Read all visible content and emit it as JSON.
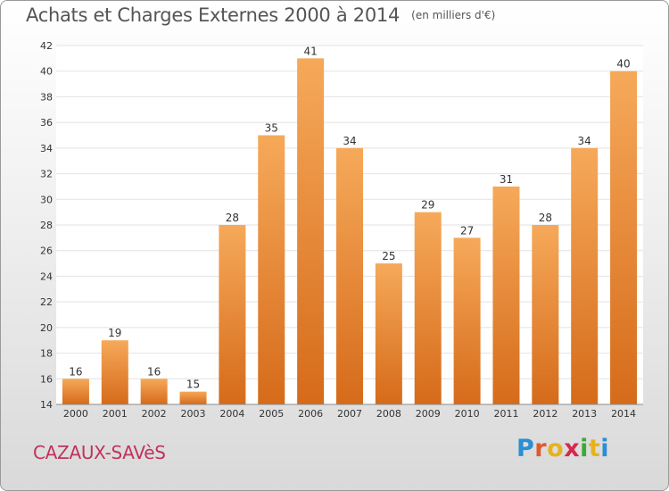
{
  "header": {
    "title": "Achats et Charges Externes 2000 à 2014",
    "subtitle": "(en milliers d'€)"
  },
  "footer": {
    "commune": "CAZAUX-SAVèS",
    "logo_letters": [
      "P",
      "r",
      "o",
      "x",
      "i",
      "t",
      "i"
    ],
    "logo_colors": [
      "#2a8fd4",
      "#e05a2b",
      "#e8b21d",
      "#d6284e",
      "#3aaa35",
      "#e8b21d",
      "#2a8fd4"
    ]
  },
  "colors": {
    "bar_light": "#f6a95a",
    "bar_dark": "#d56b1a",
    "grid": "#e2e2e2",
    "axis_text": "#333333"
  },
  "chart_data": {
    "type": "bar",
    "title": "Achats et Charges Externes 2000 à 2014",
    "subtitle": "(en milliers d'€)",
    "categories": [
      "2000",
      "2001",
      "2002",
      "2003",
      "2004",
      "2005",
      "2006",
      "2007",
      "2008",
      "2009",
      "2010",
      "2011",
      "2012",
      "2013",
      "2014"
    ],
    "values": [
      16,
      19,
      16,
      15,
      28,
      35,
      41,
      34,
      25,
      29,
      27,
      31,
      28,
      34,
      40
    ],
    "ylim": [
      14,
      42
    ],
    "yticks": [
      14,
      16,
      18,
      20,
      22,
      24,
      26,
      28,
      30,
      32,
      34,
      36,
      38,
      40,
      42
    ],
    "grid": true,
    "xlabel": "",
    "ylabel": ""
  }
}
